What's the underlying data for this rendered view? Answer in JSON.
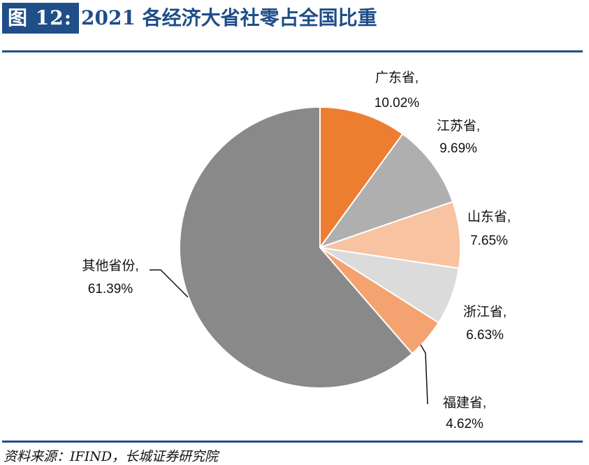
{
  "figure": {
    "number_label": "图 12:",
    "title": "2021 各经济大省社零占全国比重"
  },
  "source": "资料来源：IFIND，长城证券研究院",
  "colors": {
    "brand_blue": "#1f4e89"
  },
  "chart_data": {
    "type": "pie",
    "title": "",
    "unit": "%",
    "slices": [
      {
        "name": "广东省",
        "value": 10.02,
        "label_name": "广东省,",
        "label_value": "10.02%",
        "color": "#ed7d31"
      },
      {
        "name": "江苏省",
        "value": 9.69,
        "label_name": "江苏省,",
        "label_value": "9.69%",
        "color": "#afafaf"
      },
      {
        "name": "山东省",
        "value": 7.65,
        "label_name": "山东省,",
        "label_value": "7.65%",
        "color": "#f8c3a0"
      },
      {
        "name": "浙江省",
        "value": 6.63,
        "label_name": "浙江省,",
        "label_value": "6.63%",
        "color": "#dbdbdb"
      },
      {
        "name": "福建省",
        "value": 4.62,
        "label_name": "福建省,",
        "label_value": "4.62%",
        "color": "#f4a370"
      },
      {
        "name": "其他省份",
        "value": 61.39,
        "label_name": "其他省份,",
        "label_value": "61.39%",
        "color": "#898989"
      }
    ]
  }
}
